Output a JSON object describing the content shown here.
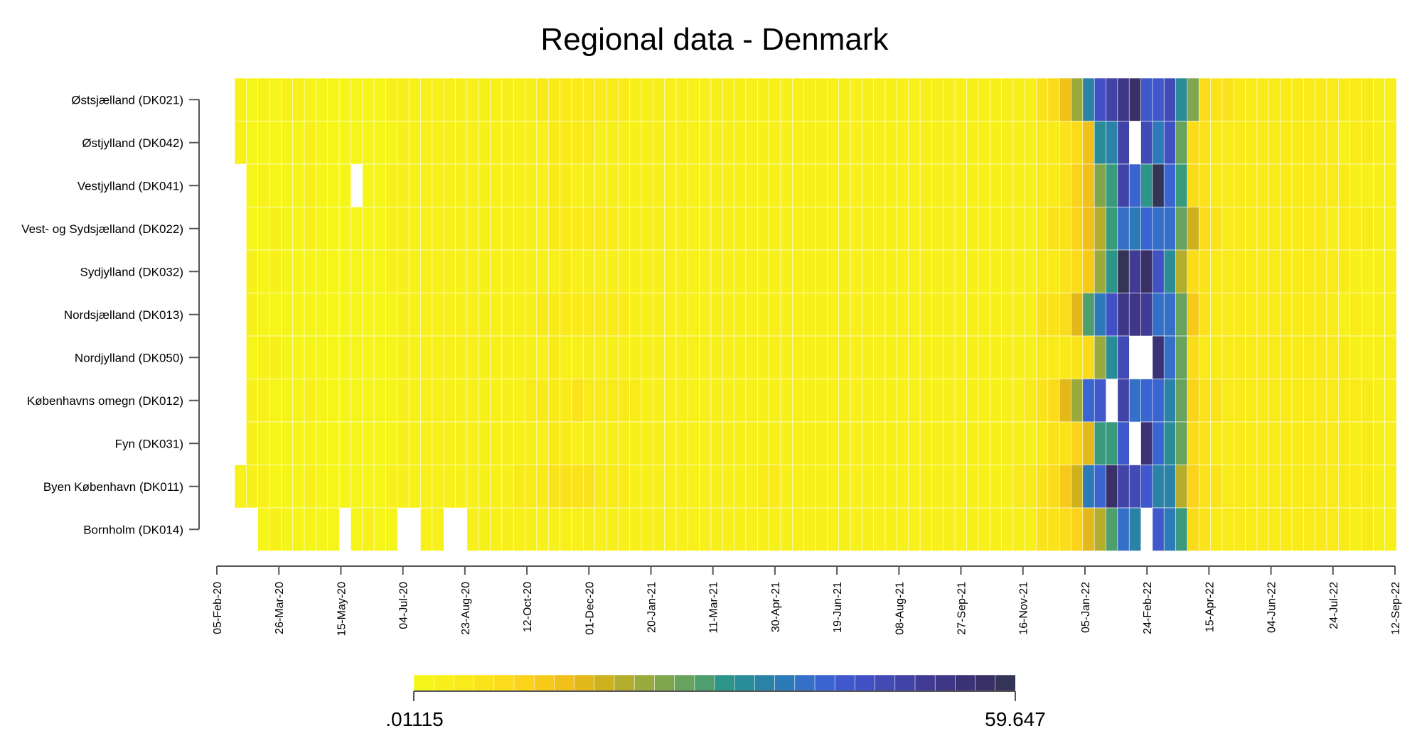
{
  "chart_data": {
    "type": "heatmap",
    "title": "Regional data - Denmark",
    "regions": [
      "Østsjælland (DK021)",
      "Østjylland (DK042)",
      "Vestjylland (DK041)",
      "Vest- og Sydsjælland (DK022)",
      "Sydjylland (DK032)",
      "Nordsjælland (DK013)",
      "Nordjylland (DK050)",
      "Københavns omegn (DK012)",
      "Fyn (DK031)",
      "Byen København (DK011)",
      "Bornholm (DK014)"
    ],
    "x_ticks": [
      "05-Feb-20",
      "26-Mar-20",
      "15-May-20",
      "04-Jul-20",
      "23-Aug-20",
      "12-Oct-20",
      "01-Dec-20",
      "20-Jan-21",
      "11-Mar-21",
      "30-Apr-21",
      "19-Jun-21",
      "08-Aug-21",
      "27-Sep-21",
      "16-Nov-21",
      "05-Jan-22",
      "24-Feb-22",
      "15-Apr-22",
      "04-Jun-22",
      "24-Jul-22",
      "12-Sep-22"
    ],
    "week_count": 100,
    "first_week": "2020-02-05",
    "unit": "weekly",
    "color_scale": {
      "min_label": ".01115",
      "max_label": "59.647",
      "min": 0.01115,
      "max": 59.647,
      "colors": [
        "#f5f51a",
        "#f7f01a",
        "#f9ea1a",
        "#fae31a",
        "#fbdc1a",
        "#fad31a",
        "#f7ca1a",
        "#f1c01a",
        "#e2b81a",
        "#cdb21e",
        "#b5ad2c",
        "#9aaa3c",
        "#7fa64c",
        "#67a25e",
        "#4f9e6e",
        "#3a9a7c",
        "#2d9489",
        "#2a8c96",
        "#2a83a6",
        "#2d7ab8",
        "#3470c8",
        "#3a64cf",
        "#3f59cc",
        "#4150c2",
        "#424ab5",
        "#4143a6",
        "#403c96",
        "#3e3686",
        "#3b3275",
        "#383066",
        "#343457"
      ],
      "steps": 30
    },
    "series": [
      {
        "name": "Østsjælland (DK021)",
        "values": [
          0.5,
          0.4,
          0.5,
          0.4,
          0.5,
          0.5,
          0.4,
          0.4,
          0.4,
          0.3,
          0.4,
          0.4,
          0.4,
          0.5,
          0.5,
          0.7,
          0.7,
          0.9,
          0.8,
          0.8,
          0.7,
          0.6,
          0.9,
          1,
          1.4,
          1.6,
          2,
          2.2,
          2.6,
          2.9,
          2.4,
          2.4,
          2.2,
          2,
          1.6,
          1.4,
          1.3,
          1.2,
          1.1,
          1,
          0.9,
          0.8,
          1,
          1.1,
          1.2,
          1.4,
          1.3,
          1.1,
          0.9,
          0.8,
          0.9,
          1,
          1.1,
          1,
          1,
          0.9,
          0.9,
          0.8,
          0.8,
          0.9,
          0.9,
          1,
          1,
          1.2,
          1.2,
          1.3,
          1.3,
          1.4,
          1.5,
          3.8,
          5.6,
          11.2,
          17.4,
          33.4,
          43.1,
          48.7,
          51.9,
          57.2,
          41.1,
          40.7,
          45.6,
          29.6,
          21,
          6.3,
          4.4,
          3.3,
          2.9,
          2.5,
          2,
          2,
          1.9,
          2,
          2.3,
          2.5,
          2.2,
          2.1,
          2.4,
          1.8,
          1.6,
          1.1
        ]
      },
      {
        "name": "Østjylland (DK042)",
        "values": [
          0.5,
          0.4,
          0.4,
          0.4,
          0.4,
          0.4,
          0.5,
          0.4,
          0.4,
          0.4,
          0.4,
          0.4,
          0.4,
          0.4,
          0.5,
          0.6,
          0.7,
          0.8,
          0.8,
          0.7,
          0.6,
          0.7,
          0.8,
          0.9,
          1.2,
          1.4,
          1.6,
          1.8,
          1.9,
          2,
          1.9,
          1.7,
          1.7,
          1.6,
          1.4,
          1.3,
          1.2,
          1.1,
          1,
          0.9,
          0.8,
          0.8,
          0.8,
          1,
          1.1,
          1.3,
          1.2,
          1.1,
          1,
          0.9,
          0.9,
          1.2,
          1.3,
          1.1,
          0.9,
          0.9,
          1.1,
          1.2,
          1.3,
          1.3,
          1.1,
          1.1,
          1,
          1,
          1,
          1.1,
          1.3,
          1.5,
          1.7,
          2.3,
          3,
          4.1,
          5,
          11,
          29.9,
          33.4,
          48.9,
          null,
          45.2,
          34.8,
          43.5,
          23.2,
          5,
          3.5,
          2.6,
          2.4,
          2.1,
          2,
          1.8,
          1.8,
          2,
          2.2,
          2.1,
          2.3,
          2.1,
          1.7,
          2.4,
          2.5,
          1.7,
          1.1
        ]
      },
      {
        "name": "Vestjylland (DK041)",
        "values": [
          null,
          0.4,
          0.5,
          0.4,
          0.4,
          0.4,
          0.5,
          0.4,
          0.4,
          0.4,
          null,
          0.4,
          0.4,
          0.5,
          0.5,
          0.6,
          0.7,
          0.8,
          0.7,
          0.7,
          0.7,
          0.6,
          0.8,
          0.9,
          1.1,
          1.3,
          1.5,
          1.8,
          1.9,
          1.7,
          1.5,
          1.4,
          1.4,
          1.3,
          1.2,
          1,
          1,
          0.9,
          0.9,
          1,
          0.9,
          0.8,
          0.8,
          0.9,
          1,
          1.1,
          1.1,
          1,
          0.8,
          0.8,
          0.8,
          0.9,
          1,
          1.1,
          1,
          0.9,
          0.9,
          0.9,
          1,
          0.9,
          0.8,
          0.9,
          1,
          1.3,
          1.2,
          1.1,
          1.2,
          1.2,
          1.4,
          2,
          2.6,
          4.4,
          7.2,
          11.2,
          20.5,
          26.6,
          48.8,
          39.6,
          28,
          59.6,
          39.2,
          26.6,
          5.3,
          4,
          2.8,
          2.4,
          2.2,
          2,
          2,
          1.9,
          2.1,
          2.2,
          2.2,
          2.1,
          1.9,
          2,
          1.5,
          1.6,
          1.5,
          1
        ]
      },
      {
        "name": "Vest- og Sydsjælland (DK022)",
        "values": [
          null,
          0.4,
          0.4,
          0.5,
          0.4,
          0.4,
          0.5,
          0.4,
          0.4,
          0.4,
          0.4,
          0.4,
          0.4,
          0.5,
          0.5,
          0.6,
          0.8,
          0.8,
          0.7,
          0.8,
          0.7,
          0.7,
          0.8,
          1.3,
          1.4,
          1.4,
          1.7,
          2.1,
          2.1,
          2.1,
          2,
          1.9,
          1.8,
          1.7,
          1.4,
          1.2,
          1,
          0.9,
          0.9,
          0.9,
          0.9,
          0.8,
          1,
          1,
          1.2,
          1.1,
          1.1,
          0.9,
          0.8,
          0.9,
          0.9,
          1,
          1,
          1.1,
          1,
          1,
          1,
          0.9,
          1,
          0.9,
          0.9,
          0.9,
          1,
          1.2,
          1.2,
          1.2,
          1.3,
          1.4,
          1.3,
          2.6,
          3.8,
          4.2,
          6.6,
          11.4,
          17.2,
          26.7,
          37.9,
          34.8,
          38.2,
          36.2,
          37.5,
          22.4,
          13.6,
          4.9,
          3.6,
          2.6,
          2.3,
          2.3,
          1.8,
          2.2,
          2.1,
          2.2,
          2.3,
          2.3,
          1.6,
          1.8,
          1.8,
          1.8,
          1.5,
          1
        ]
      },
      {
        "name": "Sydjylland (DK032)",
        "values": [
          null,
          0.5,
          0.4,
          0.5,
          0.4,
          0.4,
          0.4,
          0.4,
          0.4,
          0.4,
          0.4,
          0.4,
          0.4,
          0.5,
          0.5,
          0.6,
          0.6,
          0.7,
          0.8,
          0.7,
          0.7,
          0.6,
          0.7,
          0.9,
          1.1,
          1.4,
          1.6,
          1.7,
          1.8,
          1.7,
          1.6,
          1.6,
          1.4,
          1.2,
          1.3,
          1.1,
          1,
          1,
          0.9,
          0.9,
          0.8,
          0.9,
          0.9,
          1,
          1.1,
          1.1,
          1.2,
          1,
          0.9,
          0.8,
          0.9,
          0.9,
          0.9,
          0.9,
          0.9,
          0.8,
          0.9,
          1,
          1,
          0.9,
          1,
          1,
          1,
          1,
          1.2,
          1.2,
          1.3,
          1.4,
          1.4,
          1.8,
          2.7,
          4,
          5.2,
          9.5,
          18.5,
          28.5,
          59.1,
          50.7,
          57.8,
          44,
          31.4,
          17.3,
          5.3,
          3.4,
          2.8,
          2.1,
          2.1,
          2,
          1.9,
          2,
          2,
          2.3,
          2.2,
          2,
          1.9,
          1.9,
          1.7,
          1.6,
          1.3,
          1
        ]
      },
      {
        "name": "Nordsjælland (DK013)",
        "values": [
          null,
          0.5,
          0.4,
          0.4,
          0.4,
          0.4,
          0.4,
          0.4,
          0.4,
          0.4,
          0.4,
          0.4,
          0.4,
          0.4,
          0.5,
          0.6,
          0.7,
          0.7,
          0.9,
          0.8,
          0.7,
          0.7,
          0.8,
          1,
          1.4,
          1.7,
          2,
          2.1,
          2.4,
          2.6,
          2.2,
          2,
          1.9,
          1.8,
          1.5,
          1.3,
          1.2,
          1.1,
          1.1,
          1,
          0.9,
          0.8,
          0.9,
          1,
          1.1,
          1.3,
          1.3,
          1.1,
          1,
          0.9,
          0.9,
          1,
          1,
          1,
          1,
          1,
          0.9,
          0.9,
          0.9,
          0.9,
          0.9,
          1,
          1.1,
          1.2,
          1.3,
          1.4,
          1.5,
          1.4,
          1.4,
          3.6,
          4.3,
          6.2,
          11.9,
          24.5,
          35.9,
          43.4,
          51.6,
          53.6,
          51.4,
          37.7,
          37.6,
          22.5,
          8.4,
          4.5,
          3.1,
          2.6,
          2.3,
          2.3,
          2,
          2,
          2.1,
          2.1,
          2.3,
          2.1,
          2.2,
          1.7,
          1.8,
          1.6,
          1.4,
          1.1
        ]
      },
      {
        "name": "Nordjylland (DK050)",
        "values": [
          null,
          0.4,
          0.5,
          0.5,
          0.4,
          0.4,
          0.4,
          0.4,
          0.4,
          0.4,
          0.4,
          0.4,
          0.4,
          0.4,
          0.5,
          0.6,
          0.7,
          0.7,
          0.8,
          0.7,
          0.6,
          0.6,
          0.6,
          0.9,
          1.2,
          1.3,
          1.5,
          1.8,
          1.7,
          1.5,
          1.5,
          1.4,
          1.5,
          1.4,
          1.2,
          1,
          1,
          0.9,
          0.9,
          0.8,
          0.9,
          0.8,
          0.8,
          0.9,
          1,
          1,
          1.1,
          0.9,
          0.8,
          0.8,
          0.8,
          0.9,
          0.9,
          1,
          0.9,
          0.9,
          0.9,
          0.9,
          0.9,
          1,
          1,
          0.9,
          0.9,
          1,
          1,
          1.1,
          1.3,
          1.5,
          1.6,
          2.2,
          2.5,
          3.1,
          4,
          6.1,
          18,
          30.9,
          45.2,
          null,
          null,
          55.9,
          37.6,
          22,
          5.6,
          3.2,
          2.5,
          2.1,
          2,
          2,
          1.9,
          1.9,
          2.1,
          2,
          1.9,
          1.8,
          1.8,
          1.8,
          1.6,
          1.6,
          1.3,
          1
        ]
      },
      {
        "name": "Københavns omegn (DK012)",
        "values": [
          null,
          0.5,
          0.5,
          0.4,
          0.4,
          0.4,
          0.5,
          0.4,
          0.4,
          0.4,
          0.4,
          0.4,
          0.4,
          0.4,
          0.5,
          0.6,
          0.7,
          0.7,
          0.8,
          0.8,
          0.9,
          0.8,
          0.9,
          1.1,
          1.6,
          1.8,
          2.2,
          2.5,
          3.2,
          3.3,
          2.7,
          2.6,
          2.4,
          2.4,
          1.9,
          1.6,
          1.5,
          1.4,
          1.3,
          1.2,
          1.1,
          1,
          1.1,
          1.3,
          1.6,
          1.7,
          1.5,
          1.3,
          1.2,
          1.1,
          1.1,
          1.2,
          1.3,
          1.2,
          1.1,
          1,
          1,
          1,
          1.1,
          1.2,
          1.3,
          1.3,
          1.4,
          1.4,
          1.4,
          1.5,
          1.6,
          1.7,
          1.8,
          4.4,
          6,
          12.5,
          17.8,
          38.3,
          41.2,
          null,
          48.4,
          36.2,
          40.1,
          39.5,
          33.4,
          22.5,
          7,
          4.6,
          3.3,
          2.9,
          2.5,
          2.1,
          2.2,
          2.1,
          2.2,
          2.3,
          2.4,
          2.5,
          2.4,
          2.1,
          2,
          1.8,
          1.5,
          1.1
        ]
      },
      {
        "name": "Fyn (DK031)",
        "values": [
          null,
          0.5,
          0.4,
          0.4,
          0.4,
          0.4,
          0.4,
          0.4,
          0.4,
          0.4,
          0.4,
          0.4,
          0.4,
          0.4,
          0.5,
          0.6,
          0.7,
          0.7,
          0.8,
          0.7,
          0.7,
          0.6,
          0.7,
          0.9,
          1.1,
          1.3,
          1.5,
          1.8,
          1.8,
          1.6,
          1.5,
          1.4,
          1.5,
          1.2,
          1.2,
          1.1,
          1,
          1,
          0.9,
          1,
          1,
          0.8,
          0.9,
          1,
          1.1,
          1.1,
          1.1,
          1,
          0.8,
          0.9,
          0.9,
          0.9,
          0.9,
          1.1,
          1,
          1,
          0.9,
          0.9,
          1,
          1,
          1,
          0.9,
          1,
          1,
          1.1,
          1.3,
          1.4,
          1.3,
          1.6,
          2.1,
          3.3,
          4.2,
          6.6,
          12.7,
          26.9,
          26.2,
          41.7,
          null,
          56.1,
          39.1,
          30.1,
          22.4,
          5.4,
          3.5,
          2.9,
          2.4,
          2.1,
          2,
          1.8,
          2,
          2,
          2.1,
          2.2,
          2.1,
          2.1,
          1.9,
          1.6,
          1.8,
          1.4,
          1
        ]
      },
      {
        "name": "Byen København (DK011)",
        "values": [
          0.6,
          0.5,
          0.5,
          0.4,
          0.4,
          0.4,
          0.5,
          0.4,
          0.4,
          0.4,
          0.4,
          0.4,
          0.4,
          0.5,
          0.5,
          0.6,
          0.7,
          0.8,
          0.9,
          0.9,
          1,
          1,
          1.1,
          1.6,
          2.1,
          2.6,
          3,
          3.5,
          4.1,
          4.4,
          3.3,
          3.1,
          2.4,
          2.1,
          1.7,
          1.6,
          1.5,
          1.4,
          1.4,
          1.2,
          1.1,
          1,
          1.1,
          1.3,
          1.7,
          2,
          1.9,
          1.6,
          1.4,
          1.2,
          1.3,
          1.4,
          1.4,
          1.3,
          1.3,
          1.2,
          1.1,
          1.1,
          1.1,
          1.2,
          1.3,
          1.2,
          1.4,
          1.5,
          1.6,
          1.6,
          1.7,
          1.9,
          2.2,
          4.4,
          6,
          9.7,
          14.6,
          34.8,
          38.6,
          56.5,
          49.1,
          45.8,
          41.1,
          31.8,
          32.1,
          16.7,
          6.6,
          4.6,
          3.3,
          2.8,
          2.5,
          2.2,
          2.3,
          2.2,
          2.2,
          2.2,
          2.4,
          2.3,
          2.2,
          2,
          1.9,
          1.9,
          1.5,
          1.1
        ]
      },
      {
        "name": "Bornholm (DK014)",
        "values": [
          null,
          null,
          0.4,
          0.5,
          0.4,
          0.4,
          0.4,
          0.4,
          0.4,
          null,
          0.4,
          0.5,
          0.4,
          0.4,
          null,
          null,
          0.6,
          0.6,
          null,
          null,
          0.6,
          0.6,
          0.7,
          0.8,
          1,
          1,
          1.2,
          1.4,
          1.3,
          1.2,
          1.3,
          1.1,
          1.1,
          1,
          0.9,
          0.9,
          0.8,
          0.8,
          0.8,
          0.8,
          0.7,
          0.7,
          0.8,
          0.8,
          0.9,
          1,
          0.9,
          0.8,
          0.8,
          0.7,
          0.8,
          0.8,
          0.9,
          0.9,
          0.9,
          0.8,
          0.8,
          0.8,
          0.9,
          0.9,
          0.9,
          0.9,
          0.9,
          0.9,
          0.9,
          0.9,
          1,
          1,
          1.1,
          3.5,
          4.2,
          5.8,
          7.8,
          11.9,
          17.2,
          24.1,
          38.1,
          32.2,
          null,
          40.6,
          34.6,
          26.9,
          4.8,
          3.5,
          2.8,
          2.6,
          2.4,
          2.4,
          2.1,
          2.2,
          2.2,
          2.3,
          2.4,
          2.2,
          2,
          2.2,
          1.7,
          1.9,
          1.5,
          1.1
        ]
      }
    ]
  }
}
